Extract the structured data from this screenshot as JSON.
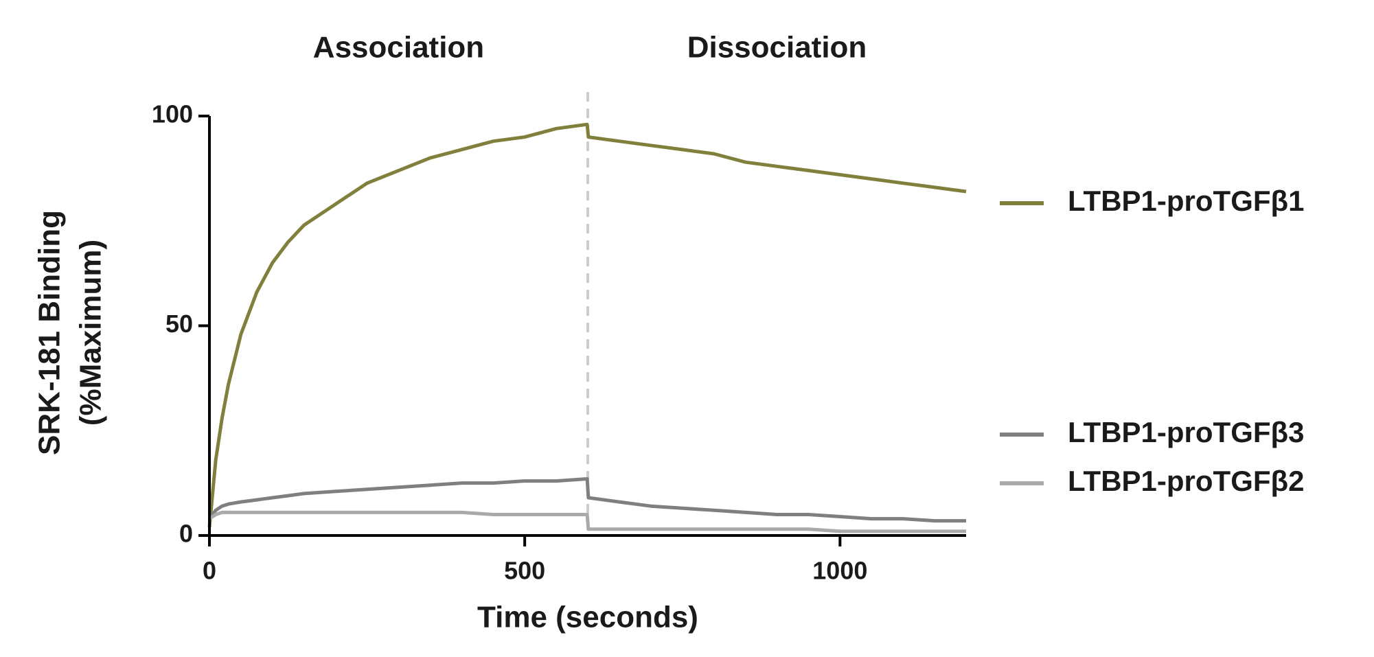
{
  "chart_data": {
    "type": "line",
    "annotations": [
      "Association",
      "Dissociation"
    ],
    "vline": 600,
    "xlabel": "Time (seconds)",
    "ylabel": [
      "SRK-181 Binding",
      "(%Maximum)"
    ],
    "x": [
      0,
      10,
      20,
      30,
      50,
      75,
      100,
      125,
      150,
      200,
      250,
      300,
      350,
      400,
      450,
      500,
      550,
      599,
      601,
      650,
      700,
      750,
      800,
      850,
      900,
      950,
      1000,
      1050,
      1100,
      1150,
      1200
    ],
    "series": [
      {
        "name": "LTBP1-proTGFβ1",
        "color": "#80803c",
        "values": [
          2,
          18,
          28,
          36,
          48,
          58,
          65,
          70,
          74,
          79,
          84,
          87,
          90,
          92,
          94,
          95,
          97,
          98,
          95,
          94,
          93,
          92,
          91,
          89,
          88,
          87,
          86,
          85,
          84,
          83,
          82
        ]
      },
      {
        "name": "LTBP1-proTGFβ3",
        "color": "#7f7f7f",
        "values": [
          4,
          6,
          7,
          7.5,
          8,
          8.5,
          9,
          9.5,
          10,
          10.5,
          11,
          11.5,
          12,
          12.5,
          12.5,
          13,
          13,
          13.5,
          9,
          8,
          7,
          6.5,
          6,
          5.5,
          5,
          5,
          4.5,
          4,
          4,
          3.5,
          3.5
        ]
      },
      {
        "name": "LTBP1-proTGFβ2",
        "color": "#aaaaaa",
        "values": [
          4,
          5,
          5.5,
          5.5,
          5.5,
          5.5,
          5.5,
          5.5,
          5.5,
          5.5,
          5.5,
          5.5,
          5.5,
          5.5,
          5,
          5,
          5,
          5,
          1.5,
          1.5,
          1.5,
          1.5,
          1.5,
          1.5,
          1.5,
          1.5,
          1,
          1,
          1,
          1,
          1
        ]
      }
    ],
    "xlim": [
      0,
      1200
    ],
    "xticks": [
      0,
      500,
      1000
    ],
    "ylim": [
      0,
      100
    ],
    "yticks": [
      0,
      50,
      100
    ]
  }
}
